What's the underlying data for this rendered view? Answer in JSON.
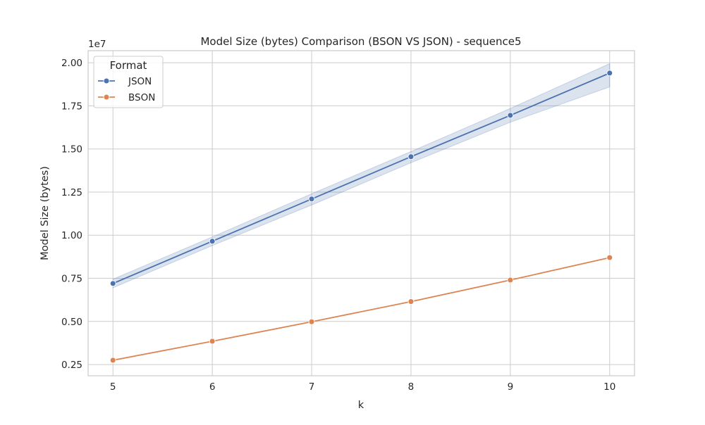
{
  "chart_data": {
    "type": "line",
    "title": "Model Size (bytes) Comparison (BSON VS JSON) - sequence5",
    "xlabel": "k",
    "ylabel": "Model Size (bytes)",
    "y_offset_label": "1e7",
    "y_scale": 10000000,
    "x": [
      5,
      6,
      7,
      8,
      9,
      10
    ],
    "x_ticks": [
      "5",
      "6",
      "7",
      "8",
      "9",
      "10"
    ],
    "y_ticks": [
      "0.25",
      "0.50",
      "0.75",
      "1.00",
      "1.25",
      "1.50",
      "1.75",
      "2.00"
    ],
    "xlim": [
      4.75,
      10.25
    ],
    "ylim": [
      1850000,
      20700000
    ],
    "grid": true,
    "legend": {
      "title": "Format",
      "placement": "top-left"
    },
    "series": [
      {
        "name": "JSON",
        "color": "#4c72b0",
        "values": [
          7200000,
          9650000,
          12100000,
          14550000,
          16950000,
          19400000
        ],
        "ci_low": [
          6950000,
          9400000,
          11750000,
          14200000,
          16550000,
          18600000
        ],
        "ci_high": [
          7450000,
          9900000,
          12400000,
          14850000,
          17350000,
          19950000
        ]
      },
      {
        "name": "BSON",
        "color": "#dd8452",
        "values": [
          2750000,
          3850000,
          4980000,
          6150000,
          7400000,
          8700000
        ]
      }
    ]
  }
}
